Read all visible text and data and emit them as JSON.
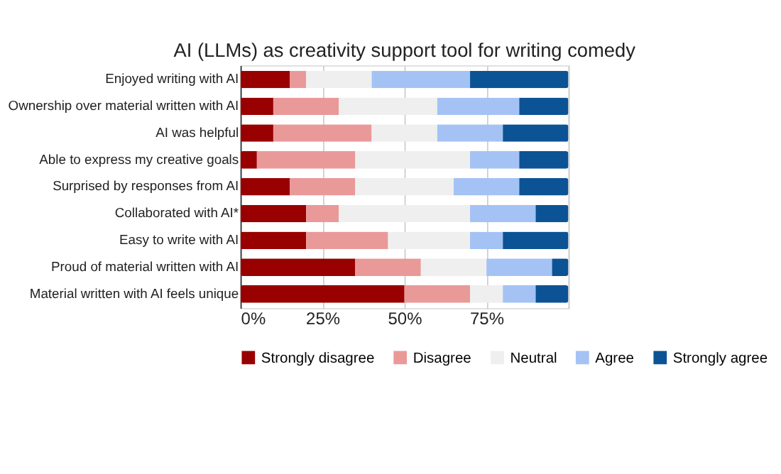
{
  "chart_data": {
    "type": "bar",
    "orientation": "horizontal",
    "stacked": true,
    "title": "AI (LLMs) as creativity support tool for writing comedy",
    "categories": [
      "Enjoyed writing with AI",
      "Ownership over material written with AI",
      "AI was helpful",
      "Able to express my creative goals",
      "Surprised by responses from AI",
      "Collaborated with AI*",
      "Easy to write with AI",
      "Proud of material written with AI",
      "Material written with AI feels unique"
    ],
    "series": [
      {
        "name": "Strongly disagree",
        "color": "#990000",
        "values": [
          15,
          10,
          10,
          5,
          15,
          20,
          20,
          35,
          50
        ]
      },
      {
        "name": "Disagree",
        "color": "#ea9999",
        "values": [
          5,
          20,
          30,
          30,
          20,
          10,
          25,
          20,
          20
        ]
      },
      {
        "name": "Neutral",
        "color": "#efefef",
        "values": [
          20,
          30,
          20,
          35,
          30,
          40,
          25,
          20,
          10
        ]
      },
      {
        "name": "Agree",
        "color": "#a4c2f4",
        "values": [
          30,
          25,
          20,
          15,
          20,
          20,
          10,
          20,
          10
        ]
      },
      {
        "name": "Strongly agree",
        "color": "#0b5394",
        "values": [
          30,
          15,
          20,
          15,
          15,
          10,
          20,
          5,
          10
        ]
      }
    ],
    "xlim": [
      0,
      100
    ],
    "xticks": [
      {
        "value": 0,
        "label": "0%"
      },
      {
        "value": 25,
        "label": "25%"
      },
      {
        "value": 50,
        "label": "50%"
      },
      {
        "value": 75,
        "label": "75%"
      },
      {
        "value": 100,
        "label": null
      }
    ],
    "grid": "x",
    "legend": "bottom"
  }
}
